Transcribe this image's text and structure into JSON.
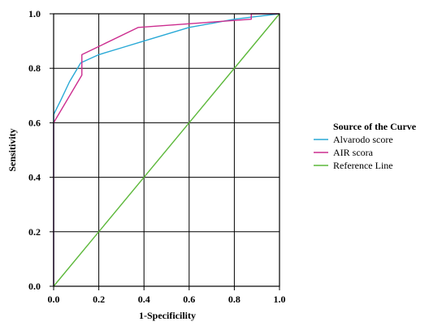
{
  "chart_data": {
    "type": "line",
    "xlabel": "1-Specificility",
    "ylabel": "Sensitivity",
    "xlim": [
      0,
      1
    ],
    "ylim": [
      0,
      1
    ],
    "xticks": [
      "0.0",
      "0.2",
      "0.4",
      "0.6",
      "0.8",
      "1.0"
    ],
    "yticks": [
      "0.0",
      "0.2",
      "0.4",
      "0.6",
      "0.8",
      "1.0"
    ],
    "grid": true,
    "legend": {
      "title": "Source of the Curve",
      "placement": "right"
    },
    "series": [
      {
        "name": "Alvarodo score",
        "color": "#29a9d6",
        "x": [
          0.0,
          0.0,
          0.03,
          0.07,
          0.12,
          0.2,
          0.3,
          0.4,
          0.5,
          0.6,
          0.7,
          0.8,
          0.9,
          1.0
        ],
        "y": [
          0.0,
          0.63,
          0.68,
          0.75,
          0.82,
          0.85,
          0.875,
          0.9,
          0.925,
          0.95,
          0.965,
          0.98,
          0.99,
          1.0
        ]
      },
      {
        "name": "AIR scora",
        "color": "#cc2d8f",
        "x": [
          0.0,
          0.0,
          0.125,
          0.125,
          0.375,
          0.875,
          0.875,
          1.0
        ],
        "y": [
          0.0,
          0.6,
          0.775,
          0.85,
          0.95,
          0.98,
          1.0,
          1.0
        ]
      },
      {
        "name": "Reference Line",
        "color": "#5cb83a",
        "x": [
          0.0,
          1.0
        ],
        "y": [
          0.0,
          1.0
        ]
      }
    ]
  }
}
